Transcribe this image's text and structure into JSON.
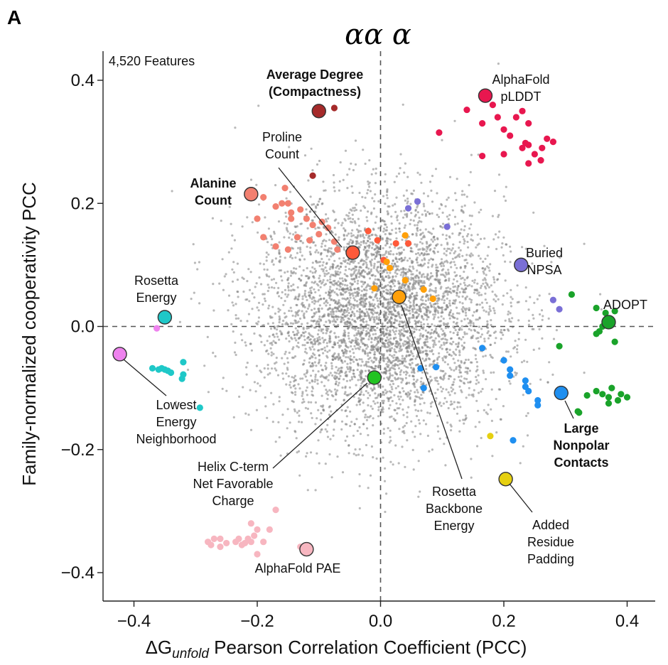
{
  "panel_label": "A",
  "chart_data": {
    "type": "scatter",
    "title": "αα α",
    "feature_count_label": "4,520 Features",
    "xlabel": {
      "prefix": "ΔG",
      "subscript": "unfold",
      "suffix": " Pearson Correlation Coefficient (PCC)"
    },
    "ylabel": "Family-normalized cooperativity PCC",
    "xlim": [
      -0.45,
      0.45
    ],
    "ylim": [
      -0.44,
      0.45
    ],
    "xticks": [
      -0.4,
      -0.2,
      0.0,
      0.2,
      0.4
    ],
    "yticks": [
      -0.4,
      -0.2,
      0.0,
      0.2,
      0.4
    ],
    "xtick_labels": [
      "−0.4",
      "−0.2",
      "0.0",
      "0.2",
      "0.4"
    ],
    "ytick_labels": [
      "−0.4",
      "−0.2",
      "0.0",
      "0.2",
      "0.4"
    ],
    "reference_lines": {
      "x": 0,
      "y": 0,
      "style": "dashed"
    },
    "grid": false,
    "background_cloud": {
      "color": "#808080",
      "count": 4520,
      "center": [
        0.0,
        0.02
      ],
      "sd": [
        0.1,
        0.095
      ]
    },
    "groups": [
      {
        "color": "#a52a2a",
        "label": "Average Degree (Compactness)",
        "bold": true,
        "highlight": [
          -0.1,
          0.35
        ],
        "points": [
          [
            -0.075,
            0.355
          ],
          [
            -0.11,
            0.245
          ]
        ]
      },
      {
        "color": "#e8174f",
        "label": "AlphaFold pLDDT",
        "bold": false,
        "highlight": [
          0.17,
          0.375
        ],
        "points": [
          [
            0.095,
            0.315
          ],
          [
            0.14,
            0.352
          ],
          [
            0.165,
            0.33
          ],
          [
            0.182,
            0.36
          ],
          [
            0.19,
            0.34
          ],
          [
            0.2,
            0.32
          ],
          [
            0.21,
            0.31
          ],
          [
            0.22,
            0.34
          ],
          [
            0.23,
            0.35
          ],
          [
            0.24,
            0.33
          ],
          [
            0.2,
            0.28
          ],
          [
            0.23,
            0.29
          ],
          [
            0.24,
            0.295
          ],
          [
            0.25,
            0.28
          ],
          [
            0.26,
            0.27
          ],
          [
            0.262,
            0.29
          ],
          [
            0.27,
            0.305
          ],
          [
            0.28,
            0.3
          ],
          [
            0.24,
            0.265
          ],
          [
            0.165,
            0.277
          ],
          [
            0.235,
            0.298
          ]
        ]
      },
      {
        "color": "#ff5a3a",
        "label": "Proline Count",
        "bold": false,
        "highlight": [
          -0.045,
          0.12
        ],
        "points": [
          [
            -0.02,
            0.155
          ],
          [
            -0.005,
            0.14
          ],
          [
            0.025,
            0.135
          ],
          [
            0.045,
            0.135
          ],
          [
            0.005,
            0.108
          ]
        ]
      },
      {
        "color": "#f28070",
        "label": "Alanine Count",
        "bold": true,
        "highlight": [
          -0.21,
          0.215
        ],
        "points": [
          [
            -0.19,
            0.21
          ],
          [
            -0.17,
            0.195
          ],
          [
            -0.16,
            0.2
          ],
          [
            -0.155,
            0.225
          ],
          [
            -0.15,
            0.2
          ],
          [
            -0.145,
            0.185
          ],
          [
            -0.13,
            0.19
          ],
          [
            -0.12,
            0.175
          ],
          [
            -0.11,
            0.165
          ],
          [
            -0.095,
            0.17
          ],
          [
            -0.085,
            0.16
          ],
          [
            -0.075,
            0.138
          ],
          [
            -0.2,
            0.175
          ],
          [
            -0.19,
            0.145
          ],
          [
            -0.17,
            0.13
          ],
          [
            -0.15,
            0.125
          ],
          [
            -0.135,
            0.145
          ],
          [
            -0.115,
            0.14
          ],
          [
            -0.1,
            0.15
          ],
          [
            -0.07,
            0.125
          ],
          [
            -0.145,
            0.175
          ]
        ]
      },
      {
        "color": "#ffa00a",
        "label": "Rosetta Backbone Energy",
        "bold": false,
        "highlight": [
          0.03,
          0.048
        ],
        "points": [
          [
            0.04,
            0.148
          ],
          [
            0.01,
            0.105
          ],
          [
            0.015,
            0.095
          ],
          [
            0.04,
            0.075
          ],
          [
            -0.01,
            0.062
          ],
          [
            0.07,
            0.06
          ],
          [
            0.085,
            0.045
          ]
        ]
      },
      {
        "color": "#7a6fd6",
        "label": "Buried NPSA",
        "bold": false,
        "highlight": [
          0.228,
          0.1
        ],
        "points": [
          [
            0.06,
            0.203
          ],
          [
            0.045,
            0.192
          ],
          [
            0.108,
            0.162
          ],
          [
            0.28,
            0.043
          ],
          [
            0.29,
            0.028
          ]
        ]
      },
      {
        "color": "#1aa32a",
        "label": "ADOPT",
        "bold": false,
        "highlight": [
          0.37,
          0.007
        ],
        "points": [
          [
            0.31,
            0.052
          ],
          [
            0.35,
            0.03
          ],
          [
            0.365,
            0.022
          ],
          [
            0.38,
            0.025
          ],
          [
            0.36,
            0.0
          ],
          [
            0.355,
            -0.008
          ],
          [
            0.35,
            -0.012
          ],
          [
            0.38,
            -0.025
          ],
          [
            0.29,
            -0.032
          ],
          [
            0.35,
            -0.105
          ],
          [
            0.36,
            -0.11
          ],
          [
            0.37,
            -0.115
          ],
          [
            0.375,
            -0.1
          ],
          [
            0.385,
            -0.12
          ],
          [
            0.39,
            -0.11
          ],
          [
            0.4,
            -0.115
          ],
          [
            0.335,
            -0.112
          ],
          [
            0.37,
            -0.125
          ],
          [
            0.32,
            -0.138
          ],
          [
            0.322,
            -0.14
          ]
        ]
      },
      {
        "color": "#1f8ff0",
        "label": "Large Nonpolar Contacts",
        "bold": true,
        "highlight": [
          0.293,
          -0.108
        ],
        "points": [
          [
            0.165,
            -0.035
          ],
          [
            0.2,
            -0.055
          ],
          [
            0.21,
            -0.07
          ],
          [
            0.21,
            -0.08
          ],
          [
            0.235,
            -0.088
          ],
          [
            0.235,
            -0.098
          ],
          [
            0.24,
            -0.105
          ],
          [
            0.255,
            -0.12
          ],
          [
            0.255,
            -0.128
          ],
          [
            0.065,
            -0.068
          ],
          [
            0.07,
            -0.1
          ],
          [
            0.09,
            -0.066
          ],
          [
            0.215,
            -0.185
          ]
        ]
      },
      {
        "color": "#e6d010",
        "label": "Added Residue Padding",
        "bold": false,
        "highlight": [
          0.203,
          -0.248
        ],
        "points": [
          [
            0.178,
            -0.178
          ]
        ]
      },
      {
        "color": "#22c322",
        "label": "Helix C-term Net Favorable Charge",
        "bold": false,
        "highlight": [
          -0.01,
          -0.083
        ],
        "points": []
      },
      {
        "color": "#1fc8c8",
        "label": "Rosetta Energy",
        "bold": false,
        "highlight": [
          -0.35,
          0.015
        ],
        "points": [
          [
            -0.37,
            -0.068
          ],
          [
            -0.36,
            -0.07
          ],
          [
            -0.355,
            -0.068
          ],
          [
            -0.35,
            -0.07
          ],
          [
            -0.345,
            -0.072
          ],
          [
            -0.34,
            -0.075
          ],
          [
            -0.32,
            -0.058
          ],
          [
            -0.32,
            -0.078
          ],
          [
            -0.322,
            -0.085
          ],
          [
            -0.293,
            -0.132
          ]
        ]
      },
      {
        "color": "#ee82ee",
        "label": "Lowest Energy Neighborhood",
        "bold": false,
        "highlight": [
          -0.423,
          -0.045
        ],
        "points": [
          [
            -0.363,
            -0.003
          ]
        ]
      },
      {
        "color": "#f7b6c0",
        "label": "AlphaFold PAE",
        "bold": false,
        "highlight": [
          -0.12,
          -0.362
        ],
        "points": [
          [
            -0.28,
            -0.35
          ],
          [
            -0.275,
            -0.355
          ],
          [
            -0.27,
            -0.345
          ],
          [
            -0.26,
            -0.345
          ],
          [
            -0.26,
            -0.358
          ],
          [
            -0.25,
            -0.352
          ],
          [
            -0.235,
            -0.35
          ],
          [
            -0.23,
            -0.345
          ],
          [
            -0.225,
            -0.355
          ],
          [
            -0.22,
            -0.352
          ],
          [
            -0.215,
            -0.345
          ],
          [
            -0.21,
            -0.35
          ],
          [
            -0.205,
            -0.34
          ],
          [
            -0.2,
            -0.33
          ],
          [
            -0.21,
            -0.32
          ],
          [
            -0.19,
            -0.35
          ],
          [
            -0.18,
            -0.33
          ],
          [
            -0.17,
            -0.298
          ],
          [
            -0.13,
            -0.358
          ],
          [
            -0.2,
            -0.37
          ]
        ]
      }
    ]
  }
}
